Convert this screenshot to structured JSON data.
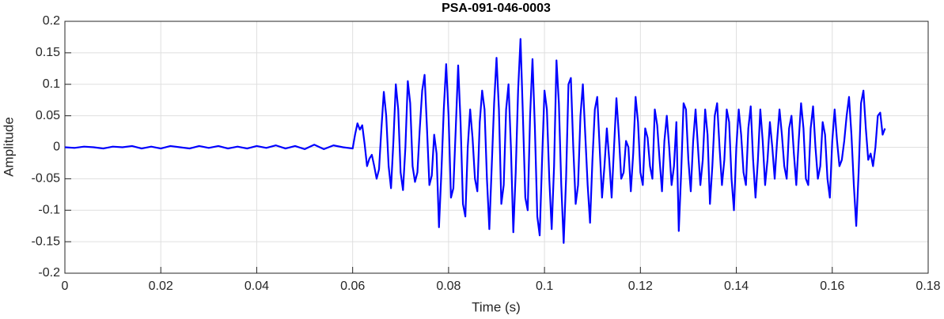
{
  "chart_data": {
    "type": "line",
    "title": "PSA-091-046-0003",
    "x_label": "Time (s)",
    "y_label": "Amplitude",
    "color": "#0000ff",
    "grid": true,
    "xlim": [
      0,
      0.18
    ],
    "xticks": [
      0,
      0.02,
      0.04,
      0.06,
      0.08,
      0.1,
      0.12,
      0.14,
      0.16,
      0.18
    ],
    "ylim": [
      -0.2,
      0.2
    ],
    "yticks": [
      -0.2,
      -0.15,
      -0.1,
      -0.05,
      0,
      0.05,
      0.1,
      0.15,
      0.2
    ],
    "x": [
      0,
      0.002,
      0.004,
      0.006,
      0.008,
      0.01,
      0.012,
      0.014,
      0.016,
      0.018,
      0.02,
      0.022,
      0.024,
      0.026,
      0.028,
      0.03,
      0.032,
      0.034,
      0.036,
      0.038,
      0.04,
      0.042,
      0.044,
      0.046,
      0.048,
      0.05,
      0.052,
      0.054,
      0.056,
      0.058,
      0.06,
      0.0605,
      0.061,
      0.0615,
      0.062,
      0.0625,
      0.063,
      0.0635,
      0.064,
      0.0645,
      0.065,
      0.0655,
      0.066,
      0.0665,
      0.067,
      0.0675,
      0.068,
      0.0685,
      0.069,
      0.0695,
      0.07,
      0.0705,
      0.071,
      0.0715,
      0.072,
      0.0725,
      0.073,
      0.0735,
      0.074,
      0.0745,
      0.075,
      0.0755,
      0.076,
      0.0765,
      0.077,
      0.0775,
      0.078,
      0.0785,
      0.079,
      0.0795,
      0.08,
      0.0805,
      0.081,
      0.0815,
      0.082,
      0.0825,
      0.083,
      0.0835,
      0.084,
      0.0845,
      0.085,
      0.0855,
      0.086,
      0.0865,
      0.087,
      0.0875,
      0.088,
      0.0885,
      0.089,
      0.0895,
      0.09,
      0.0905,
      0.091,
      0.0915,
      0.092,
      0.0925,
      0.093,
      0.0935,
      0.094,
      0.0945,
      0.095,
      0.0955,
      0.096,
      0.0965,
      0.097,
      0.0975,
      0.098,
      0.0985,
      0.099,
      0.0995,
      0.1,
      0.1005,
      0.101,
      0.1015,
      0.102,
      0.1025,
      0.103,
      0.1035,
      0.104,
      0.1045,
      0.105,
      0.1055,
      0.106,
      0.1065,
      0.107,
      0.1075,
      0.108,
      0.1085,
      0.109,
      0.1095,
      0.11,
      0.1105,
      0.111,
      0.1115,
      0.112,
      0.1125,
      0.113,
      0.1135,
      0.114,
      0.1145,
      0.115,
      0.1155,
      0.116,
      0.1165,
      0.117,
      0.1175,
      0.118,
      0.1185,
      0.119,
      0.1195,
      0.12,
      0.1205,
      0.121,
      0.1215,
      0.122,
      0.1225,
      0.123,
      0.1235,
      0.124,
      0.1245,
      0.125,
      0.1255,
      0.126,
      0.1265,
      0.127,
      0.1275,
      0.128,
      0.1285,
      0.129,
      0.1295,
      0.13,
      0.1305,
      0.131,
      0.1315,
      0.132,
      0.1325,
      0.133,
      0.1335,
      0.134,
      0.1345,
      0.135,
      0.1355,
      0.136,
      0.1365,
      0.137,
      0.1375,
      0.138,
      0.1385,
      0.139,
      0.1395,
      0.14,
      0.1405,
      0.141,
      0.1415,
      0.142,
      0.1425,
      0.143,
      0.1435,
      0.144,
      0.1445,
      0.145,
      0.1455,
      0.146,
      0.1465,
      0.147,
      0.1475,
      0.148,
      0.1485,
      0.149,
      0.1495,
      0.15,
      0.1505,
      0.151,
      0.1515,
      0.152,
      0.1525,
      0.153,
      0.1535,
      0.154,
      0.1545,
      0.155,
      0.1555,
      0.156,
      0.1565,
      0.157,
      0.1575,
      0.158,
      0.1585,
      0.159,
      0.1595,
      0.16,
      0.1605,
      0.161,
      0.1615,
      0.162,
      0.1625,
      0.163,
      0.1635,
      0.164,
      0.1645,
      0.165,
      0.1655,
      0.166,
      0.1665,
      0.167,
      0.1675,
      0.168,
      0.1685,
      0.169,
      0.1695,
      0.17,
      0.1705,
      0.171
    ],
    "values": [
      0,
      -0.001,
      0.001,
      0,
      -0.002,
      0.001,
      0,
      0.002,
      -0.002,
      0.001,
      -0.002,
      0.002,
      0,
      -0.002,
      0.002,
      -0.001,
      0.002,
      -0.002,
      0.001,
      -0.002,
      0.002,
      -0.001,
      0.003,
      -0.002,
      0.002,
      -0.003,
      0.004,
      -0.003,
      0.003,
      0,
      -0.002,
      0.02,
      0.038,
      0.028,
      0.035,
      0.005,
      -0.03,
      -0.018,
      -0.012,
      -0.03,
      -0.05,
      -0.035,
      0.03,
      0.088,
      0.05,
      -0.03,
      -0.065,
      0.01,
      0.1,
      0.06,
      -0.04,
      -0.068,
      0,
      0.105,
      0.07,
      -0.03,
      -0.055,
      -0.04,
      0.03,
      0.09,
      0.115,
      0.03,
      -0.06,
      -0.045,
      0.02,
      -0.01,
      -0.127,
      -0.04,
      0.06,
      0.132,
      0.05,
      -0.08,
      -0.065,
      0.03,
      0.13,
      0.04,
      -0.09,
      -0.11,
      0,
      0.06,
      0.015,
      -0.05,
      -0.07,
      0.04,
      0.09,
      0.06,
      -0.05,
      -0.13,
      -0.03,
      0.07,
      0.142,
      0.06,
      -0.09,
      -0.06,
      0.06,
      0.1,
      0,
      -0.135,
      -0.04,
      0.09,
      0.172,
      0.05,
      -0.08,
      -0.1,
      0.05,
      0.14,
      0.03,
      -0.11,
      -0.14,
      -0.02,
      0.09,
      0.06,
      -0.05,
      -0.13,
      -0.03,
      0.138,
      0.07,
      -0.06,
      -0.152,
      -0.05,
      0.1,
      0.11,
      0,
      -0.09,
      -0.06,
      0.05,
      0.1,
      0.02,
      -0.06,
      -0.12,
      -0.02,
      0.06,
      0.08,
      0,
      -0.08,
      -0.03,
      0.03,
      -0.02,
      -0.08,
      0,
      0.078,
      0.02,
      -0.05,
      -0.04,
      0.01,
      0,
      -0.07,
      -0.01,
      0.08,
      0.04,
      -0.04,
      -0.06,
      0.03,
      0.015,
      -0.03,
      -0.05,
      0.06,
      0.035,
      -0.02,
      -0.07,
      0.01,
      0.05,
      0,
      -0.06,
      -0.03,
      0.04,
      -0.133,
      -0.04,
      0.07,
      0.06,
      -0.02,
      -0.07,
      0.01,
      0.06,
      0,
      -0.06,
      -0.02,
      0.06,
      0.02,
      -0.09,
      -0.03,
      0.05,
      0.07,
      0,
      -0.06,
      -0.02,
      0.06,
      0.04,
      -0.05,
      -0.1,
      0,
      0.06,
      0.02,
      -0.04,
      -0.06,
      0.03,
      0.065,
      -0.02,
      -0.08,
      -0.02,
      0.06,
      0.01,
      -0.06,
      -0.02,
      0.04,
      0,
      -0.05,
      0.01,
      0.06,
      0.02,
      -0.03,
      -0.05,
      0.03,
      0.05,
      -0.01,
      -0.06,
      0.01,
      0.07,
      0.03,
      -0.05,
      -0.06,
      0.03,
      0.065,
      0,
      -0.05,
      -0.03,
      0.04,
      0.02,
      -0.05,
      -0.08,
      0.01,
      0.06,
      0.01,
      -0.03,
      -0.02,
      0.01,
      0.05,
      0.08,
      0.02,
      -0.06,
      -0.125,
      -0.04,
      0.07,
      0.09,
      0.03,
      -0.02,
      -0.01,
      -0.03,
      0,
      0.05,
      0.055,
      0.02,
      0.03
    ]
  }
}
